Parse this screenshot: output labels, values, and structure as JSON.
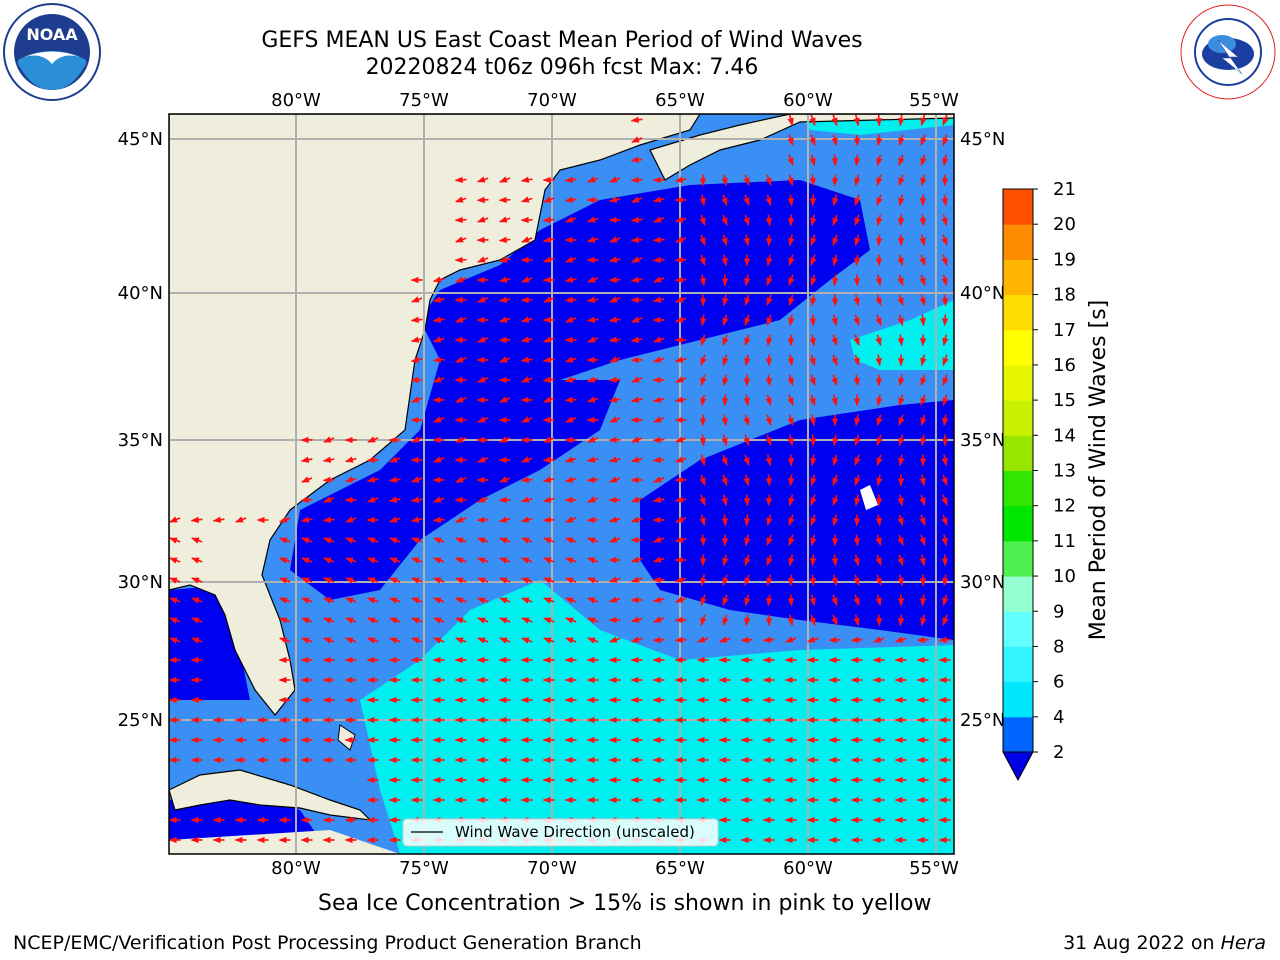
{
  "header": {
    "title_line1": "GEFS MEAN US East Coast Mean Period of Wind Waves",
    "title_line2": "20220824 t06z 096h fcst   Max: 7.46"
  },
  "logos": {
    "noaa_text": "NOAA",
    "noaa_ring_text": "NATIONAL OCEANIC AND ATMOSPHERIC ADMINISTRATION · U.S. DEPARTMENT OF COMMERCE",
    "nws_ring_text": "NATIONAL WEATHER SERVICE"
  },
  "map": {
    "lon_ticks": [
      "80°W",
      "75°W",
      "70°W",
      "65°W",
      "60°W",
      "55°W"
    ],
    "lat_ticks": [
      "45°N",
      "40°N",
      "35°N",
      "30°N",
      "25°N"
    ],
    "legend_label": "Wind Wave Direction (unscaled)",
    "colors": {
      "land": "#efeedc",
      "band_2_4": "#3a8ff5",
      "band_4_6": "#00f0f0",
      "below_2": "#0000f0",
      "arrow": "#ff1010",
      "grid": "#b0b0b0"
    }
  },
  "colorbar": {
    "label": "Mean Period of Wind Waves [s]",
    "ticks": [
      "2",
      "4",
      "6",
      "8",
      "9",
      "10",
      "11",
      "12",
      "13",
      "14",
      "15",
      "16",
      "17",
      "18",
      "19",
      "20",
      "21"
    ],
    "colors": [
      "#0064ff",
      "#00e6ff",
      "#32f5ff",
      "#64ffff",
      "#96ffd2",
      "#50f050",
      "#00e600",
      "#32e600",
      "#96e600",
      "#c8f000",
      "#e6f500",
      "#ffff00",
      "#ffdc00",
      "#ffb400",
      "#ff8c00",
      "#ff5000",
      "#ff2800",
      "#ff0000"
    ],
    "under_color": "#0000e6"
  },
  "subnote": "Sea Ice Concentration > 15% is shown in pink to yellow",
  "footer": {
    "left": "NCEP/EMC/Verification Post Processing Product Generation Branch",
    "right_date": "31 Aug 2022 on ",
    "right_host": "Hera"
  }
}
